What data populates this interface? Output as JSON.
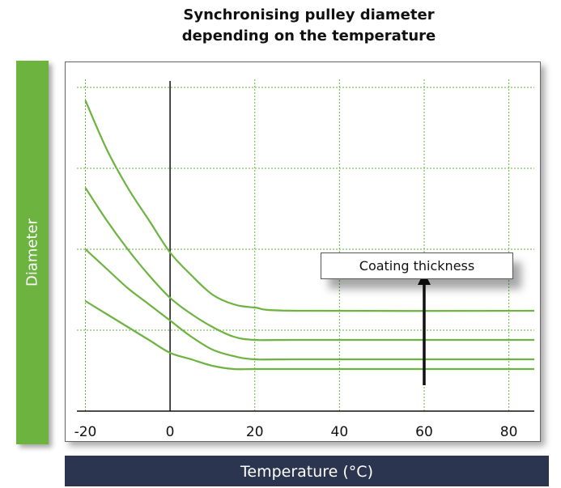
{
  "chart_data": {
    "type": "line",
    "title_lines": [
      "Synchronising pulley diameter",
      "depending on the temperature"
    ],
    "xlabel": "Temperature (°C)",
    "ylabel": "Diameter",
    "xlim": [
      -22,
      86
    ],
    "ylim": [
      0,
      10
    ],
    "x_ticks": [
      -20,
      0,
      20,
      40,
      60,
      80
    ],
    "x_tick_labels": [
      "-20",
      "0",
      "20",
      "40",
      "60",
      "80"
    ],
    "y_gridlines": [
      2.5,
      5,
      7.5,
      10
    ],
    "grid": true,
    "grid_color": "#5fb83a",
    "line_color": "#6cb33f",
    "series": [
      {
        "x": [
          -20,
          -15,
          -10,
          -5,
          0,
          5,
          10,
          15,
          20,
          30,
          86
        ],
        "y": [
          9.6,
          8.1,
          6.9,
          5.9,
          4.9,
          4.2,
          3.6,
          3.3,
          3.2,
          3.1,
          3.1
        ]
      },
      {
        "x": [
          -20,
          -15,
          -10,
          -5,
          0,
          5,
          10,
          15,
          20,
          30,
          86
        ],
        "y": [
          6.9,
          5.9,
          5.0,
          4.2,
          3.5,
          3.0,
          2.6,
          2.3,
          2.2,
          2.2,
          2.2
        ]
      },
      {
        "x": [
          -20,
          -15,
          -10,
          -5,
          0,
          5,
          10,
          15,
          20,
          30,
          86
        ],
        "y": [
          5.0,
          4.4,
          3.8,
          3.3,
          2.8,
          2.3,
          1.9,
          1.7,
          1.6,
          1.6,
          1.6
        ]
      },
      {
        "x": [
          -20,
          -15,
          -10,
          -5,
          0,
          5,
          10,
          15,
          20,
          30,
          86
        ],
        "y": [
          3.4,
          3.0,
          2.6,
          2.2,
          1.8,
          1.6,
          1.4,
          1.3,
          1.3,
          1.3,
          1.3
        ]
      }
    ],
    "annotation": {
      "label": "Coating thickness",
      "arrow_x": 60,
      "arrow_from": 0.8,
      "arrow_to": 4.3
    }
  }
}
